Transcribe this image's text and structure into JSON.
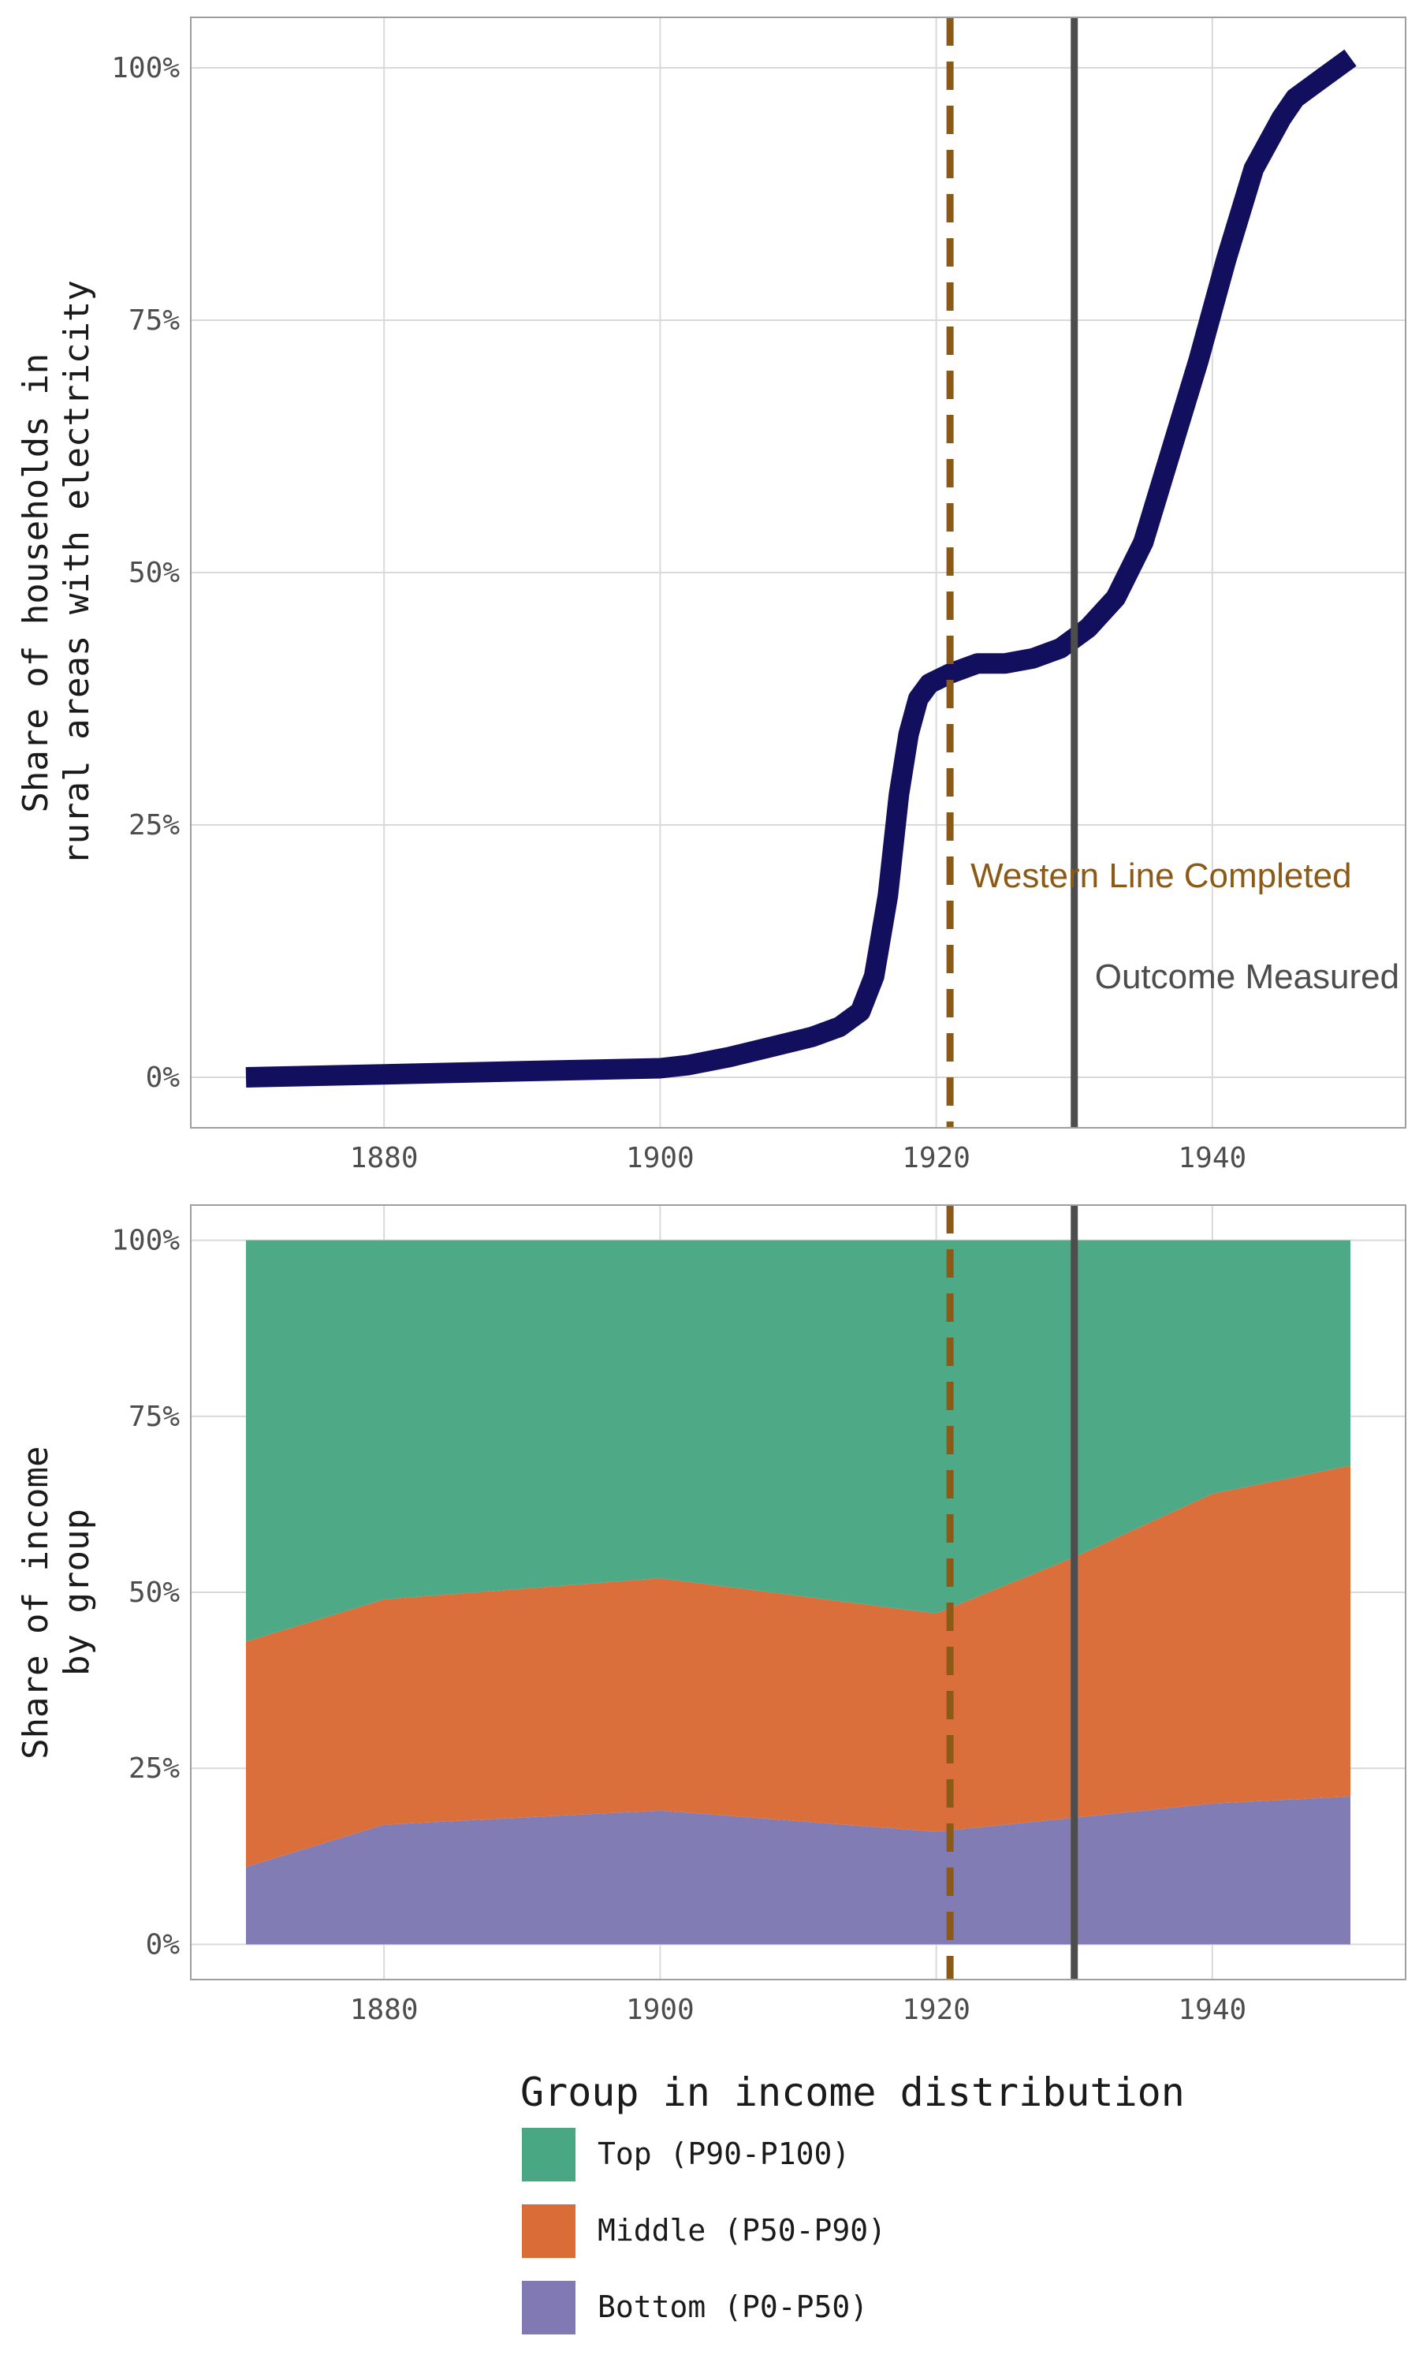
{
  "colors": {
    "electricity_line": "#12105e",
    "western_line": "#8c5a17",
    "outcome_line": "#4d4d4d",
    "top": "#4aa784",
    "middle": "#d96c37",
    "bottom": "#8079b4"
  },
  "chart_data": [
    {
      "type": "line",
      "ylabel_lines": [
        "Share of households in",
        "rural areas with electricity"
      ],
      "xlim": [
        1866,
        1954
      ],
      "ylim": [
        -5,
        105
      ],
      "x_ticks": [
        1880,
        1900,
        1920,
        1940
      ],
      "x_tick_labels": [
        "1880",
        "1900",
        "1920",
        "1940"
      ],
      "y_ticks": [
        0,
        25,
        50,
        75,
        100
      ],
      "y_tick_labels": [
        "0%",
        "25%",
        "50%",
        "75%",
        "100%"
      ],
      "grid": true,
      "series": [
        {
          "x": [
            1870,
            1880,
            1890,
            1900,
            1902,
            1905,
            1908,
            1911,
            1913,
            1914.5,
            1915.5,
            1916.5,
            1917.3,
            1918,
            1918.7,
            1919.5,
            1921,
            1923,
            1925,
            1927,
            1929,
            1931,
            1933,
            1935,
            1937,
            1939,
            1941,
            1943,
            1945,
            1946,
            1948,
            1950
          ],
          "y": [
            0,
            0.3,
            0.6,
            0.9,
            1.2,
            2,
            3,
            4,
            5,
            6.5,
            10,
            18,
            28,
            34,
            37.5,
            39,
            40,
            41,
            41,
            41.5,
            42.5,
            44.5,
            47.5,
            53,
            62,
            71,
            81,
            90,
            95,
            97,
            99,
            101
          ]
        }
      ],
      "annotations": [
        {
          "text": "Western Line Completed",
          "x": 1921,
          "y": 20,
          "color_key": "western_line"
        },
        {
          "text": "Outcome Measured",
          "x": 1930,
          "y": 10,
          "color_key": "outcome_line"
        }
      ],
      "vlines": [
        {
          "x": 1921,
          "style": "dashed",
          "color_key": "western_line"
        },
        {
          "x": 1930,
          "style": "solid",
          "color_key": "outcome_line"
        }
      ]
    },
    {
      "type": "area",
      "stacked": true,
      "ylabel_lines": [
        "Share of income",
        "by group"
      ],
      "xlim": [
        1866,
        1954
      ],
      "ylim": [
        -5,
        105
      ],
      "x_ticks": [
        1880,
        1900,
        1920,
        1940
      ],
      "x_tick_labels": [
        "1880",
        "1900",
        "1920",
        "1940"
      ],
      "y_ticks": [
        0,
        25,
        50,
        75,
        100
      ],
      "y_tick_labels": [
        "0%",
        "25%",
        "50%",
        "75%",
        "100%"
      ],
      "grid": true,
      "x": [
        1870,
        1880,
        1900,
        1920,
        1930,
        1940,
        1950
      ],
      "series": [
        {
          "name": "Bottom (P0-P50)",
          "color_key": "bottom",
          "values": [
            11,
            17,
            19,
            16,
            18,
            20,
            21
          ]
        },
        {
          "name": "Middle (P50-P90)",
          "color_key": "middle",
          "values": [
            32,
            32,
            33,
            31,
            37,
            44,
            47
          ]
        },
        {
          "name": "Top (P90-P100)",
          "color_key": "top",
          "values": [
            57,
            51,
            48,
            53,
            45,
            36,
            32
          ]
        }
      ],
      "vlines": [
        {
          "x": 1921,
          "style": "dashed",
          "color_key": "western_line"
        },
        {
          "x": 1930,
          "style": "solid",
          "color_key": "outcome_line"
        }
      ],
      "legend": {
        "title": "Group in income distribution",
        "position": "bottom",
        "items": [
          {
            "label": "Top (P90-P100)",
            "color_key": "top"
          },
          {
            "label": "Middle (P50-P90)",
            "color_key": "middle"
          },
          {
            "label": "Bottom (P0-P50)",
            "color_key": "bottom"
          }
        ]
      }
    }
  ]
}
